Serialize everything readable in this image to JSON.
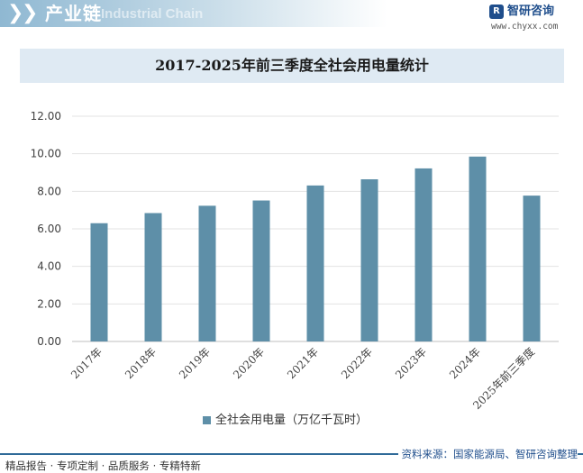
{
  "header": {
    "section_title": "产业链",
    "watermark_text": "Industrial Chain",
    "brand_name": "智研咨询",
    "brand_url": "www.chyxx.com"
  },
  "chart_data": {
    "type": "bar",
    "title": "2017-2025年前三季度全社会用电量统计",
    "categories": [
      "2017年",
      "2018年",
      "2019年",
      "2020年",
      "2021年",
      "2022年",
      "2023年",
      "2024年",
      "2025年前三季度"
    ],
    "series": [
      {
        "name": "全社会用电量（万亿千瓦时）",
        "values": [
          6.3,
          6.84,
          7.23,
          7.51,
          8.31,
          8.64,
          9.22,
          9.85,
          7.77
        ]
      }
    ],
    "ylim": [
      0,
      12
    ],
    "yticks": [
      "0.00",
      "2.00",
      "4.00",
      "6.00",
      "8.00",
      "10.00",
      "12.00"
    ],
    "grid": true,
    "legend_position": "bottom",
    "bar_color": "#5e8fa8"
  },
  "footer": {
    "left": "精品报告 · 专项定制 · 品质服务 · 专精特新",
    "right": "资料来源：国家能源局、智研咨询整理"
  }
}
